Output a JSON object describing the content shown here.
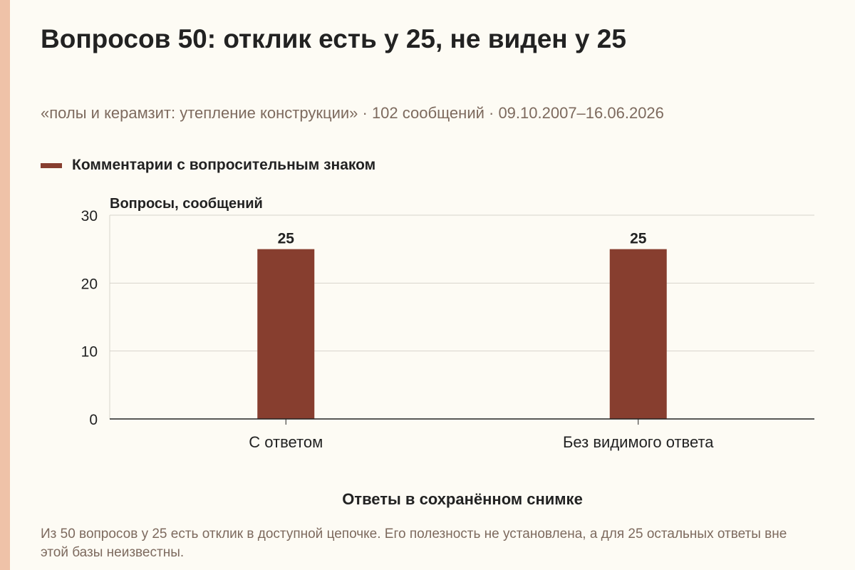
{
  "title": "Вопросов 50: отклик есть у 25, не виден у 25",
  "subtitle": "«полы и керамзит: утепление конструкции» · 102 сообщений · 09.10.2007–16.06.2026",
  "footnote": "Из 50 вопросов у 25 есть отклик в доступной цепочке. Его полезность не установлена, а для 25 остальных ответы вне этой базы неизвестны.",
  "colors": {
    "bar": "#873e2f",
    "accent": "#efc2a8",
    "grid": "#d8d4cc",
    "text": "#222222",
    "muted": "#7d6a5e"
  },
  "chart_data": {
    "type": "bar",
    "title": "",
    "xlabel": "Ответы в сохранённом снимке",
    "ylabel": "Вопросы, сообщений",
    "categories": [
      "С ответом",
      "Без видимого ответа"
    ],
    "series": [
      {
        "name": "Комментарии с вопросительным знаком",
        "values": [
          25,
          25
        ]
      }
    ],
    "data_labels": [
      "25",
      "25"
    ],
    "ylim": [
      0,
      30
    ],
    "yticks": [
      0,
      10,
      20,
      30
    ],
    "ytick_labels": [
      "0",
      "10",
      "20",
      "30"
    ],
    "grid": true,
    "legend_position": "top-left"
  }
}
